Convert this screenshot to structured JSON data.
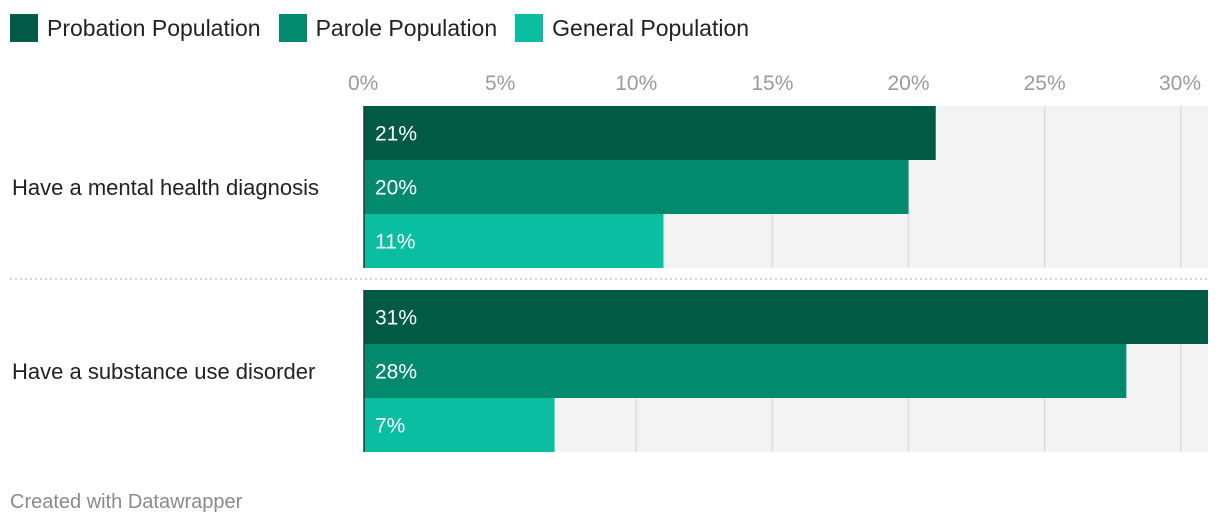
{
  "chart_data": {
    "type": "bar",
    "orientation": "horizontal",
    "categories": [
      "Have a mental health diagnosis",
      "Have a substance use disorder"
    ],
    "series": [
      {
        "name": "Probation Population",
        "color": "#015a44",
        "values": [
          21,
          31
        ],
        "labels": [
          "21%",
          "31%"
        ]
      },
      {
        "name": "Parole Population",
        "color": "#018a6d",
        "values": [
          20,
          28
        ],
        "labels": [
          "20%",
          "28%"
        ]
      },
      {
        "name": "General Population",
        "color": "#0abfa1",
        "values": [
          11,
          7
        ],
        "labels": [
          "11%",
          "7%"
        ]
      }
    ],
    "x_ticks": [
      0,
      5,
      10,
      15,
      20,
      25,
      30
    ],
    "x_tick_labels": [
      "0%",
      "5%",
      "10%",
      "15%",
      "20%",
      "25%",
      "30%"
    ],
    "xlim": [
      0,
      31
    ],
    "legend_position": "top-left",
    "grid": true,
    "background_color": "#f3f3f3",
    "grid_color": "#dcdcdc"
  },
  "footer": {
    "credit": "Created with Datawrapper"
  }
}
